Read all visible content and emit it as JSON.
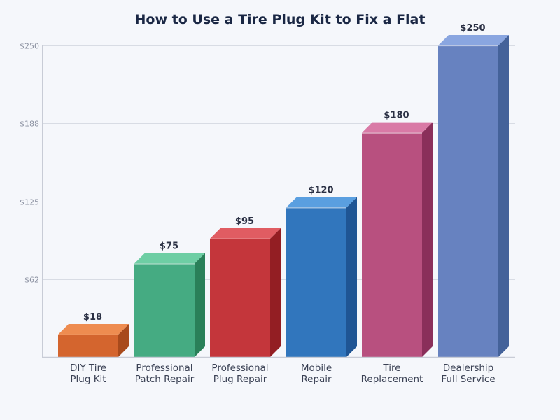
{
  "chart_data": {
    "type": "bar",
    "title": "How to Use a Tire Plug Kit to Fix a Flat",
    "xlabel": "",
    "ylabel": "",
    "ylim": [
      0,
      250
    ],
    "yticks": [
      62,
      125,
      188,
      250
    ],
    "ytick_labels": [
      "$62",
      "$125",
      "$188",
      "$250"
    ],
    "grid": true,
    "style": "3d-bars",
    "categories": [
      "DIY Tire Plug Kit",
      "Professional Patch Repair",
      "Professional Plug Repair",
      "Mobile Repair",
      "Tire Replacement",
      "Dealership Full Service"
    ],
    "category_lines": [
      [
        "DIY Tire",
        "Plug Kit"
      ],
      [
        "Professional",
        "Patch Repair"
      ],
      [
        "Professional",
        "Plug Repair"
      ],
      [
        "Mobile",
        "Repair"
      ],
      [
        "Tire",
        "Replacement"
      ],
      [
        "Dealership",
        "Full Service"
      ]
    ],
    "values": [
      18,
      75,
      95,
      120,
      180,
      250
    ],
    "value_labels": [
      "$18",
      "$75",
      "$95",
      "$120",
      "$180",
      "$250"
    ],
    "colors": [
      {
        "front": "#d4652e",
        "top": "#ee8c50",
        "side": "#a84a1c"
      },
      {
        "front": "#45ab82",
        "top": "#6ecea4",
        "side": "#2a8059"
      },
      {
        "front": "#c4363b",
        "top": "#e05c62",
        "side": "#931e23"
      },
      {
        "front": "#3176bd",
        "top": "#5a9fe0",
        "side": "#1f5594"
      },
      {
        "front": "#b8507f",
        "top": "#d97aa6",
        "side": "#8a2f5a"
      },
      {
        "front": "#6782c0",
        "top": "#8aa6e0",
        "side": "#44629a"
      }
    ]
  },
  "colors": {
    "background": "#f5f7fb",
    "grid": "#d8dce4",
    "axis": "#c8ccd6",
    "title": "#1a2744"
  }
}
